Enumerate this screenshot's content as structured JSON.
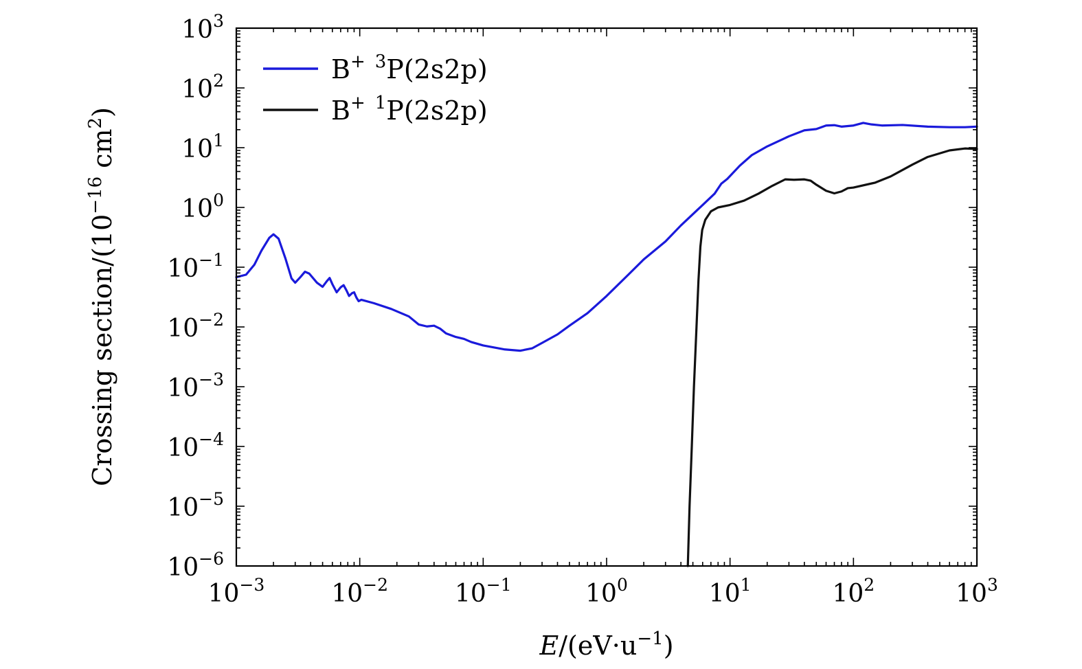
{
  "chart_data": {
    "type": "line",
    "xscale": "log",
    "yscale": "log",
    "xlim": [
      0.001,
      1000
    ],
    "ylim": [
      1e-06,
      1000
    ],
    "xlabel": "E/(eV·u⁻¹)",
    "xlabel_parts": {
      "var": "E",
      "unit_pre": "/(eV·u",
      "unit_exp": "−1",
      "unit_post": ")"
    },
    "ylabel": "Crossing section/(10⁻¹⁶ cm²)",
    "ylabel_parts": {
      "pre": "Crossing section/(10",
      "exp1": "−16",
      "mid": " cm",
      "exp2": "2",
      "post": ")"
    },
    "x_ticks": [
      {
        "value": 0.001,
        "base": "10",
        "exp": "−3"
      },
      {
        "value": 0.01,
        "base": "10",
        "exp": "−2"
      },
      {
        "value": 0.1,
        "base": "10",
        "exp": "−1"
      },
      {
        "value": 1,
        "base": "10",
        "exp": "0"
      },
      {
        "value": 10,
        "base": "10",
        "exp": "1"
      },
      {
        "value": 100,
        "base": "10",
        "exp": "2"
      },
      {
        "value": 1000,
        "base": "10",
        "exp": "3"
      }
    ],
    "y_ticks": [
      {
        "value": 1e-06,
        "base": "10",
        "exp": "−6"
      },
      {
        "value": 1e-05,
        "base": "10",
        "exp": "−5"
      },
      {
        "value": 0.0001,
        "base": "10",
        "exp": "−4"
      },
      {
        "value": 0.001,
        "base": "10",
        "exp": "−3"
      },
      {
        "value": 0.01,
        "base": "10",
        "exp": "−2"
      },
      {
        "value": 0.1,
        "base": "10",
        "exp": "−1"
      },
      {
        "value": 1,
        "base": "10",
        "exp": "0"
      },
      {
        "value": 10,
        "base": "10",
        "exp": "1"
      },
      {
        "value": 100,
        "base": "10",
        "exp": "2"
      },
      {
        "value": 1000,
        "base": "10",
        "exp": "3"
      }
    ],
    "grid": false,
    "legend_position": "top-left",
    "series": [
      {
        "name": "B+ 3P(2s2p)",
        "label_parts": {
          "base": "B",
          "charge": "+",
          "mult": "3",
          "rest": "P(2s2p)"
        },
        "color": "#1a1adb",
        "points": [
          [
            0.001,
            0.068
          ],
          [
            0.0012,
            0.075
          ],
          [
            0.0014,
            0.11
          ],
          [
            0.0016,
            0.19
          ],
          [
            0.00185,
            0.31
          ],
          [
            0.002,
            0.355
          ],
          [
            0.0022,
            0.3
          ],
          [
            0.0025,
            0.14
          ],
          [
            0.0028,
            0.065
          ],
          [
            0.003,
            0.055
          ],
          [
            0.0033,
            0.068
          ],
          [
            0.0036,
            0.084
          ],
          [
            0.0039,
            0.078
          ],
          [
            0.0045,
            0.055
          ],
          [
            0.005,
            0.047
          ],
          [
            0.0054,
            0.058
          ],
          [
            0.0057,
            0.066
          ],
          [
            0.006,
            0.052
          ],
          [
            0.0065,
            0.038
          ],
          [
            0.007,
            0.046
          ],
          [
            0.0074,
            0.05
          ],
          [
            0.0078,
            0.041
          ],
          [
            0.0082,
            0.033
          ],
          [
            0.0087,
            0.037
          ],
          [
            0.009,
            0.038
          ],
          [
            0.0094,
            0.031
          ],
          [
            0.0098,
            0.027
          ],
          [
            0.0103,
            0.0285
          ],
          [
            0.013,
            0.025
          ],
          [
            0.018,
            0.02
          ],
          [
            0.025,
            0.015
          ],
          [
            0.03,
            0.011
          ],
          [
            0.035,
            0.0102
          ],
          [
            0.04,
            0.0105
          ],
          [
            0.045,
            0.0093
          ],
          [
            0.05,
            0.0078
          ],
          [
            0.06,
            0.0068
          ],
          [
            0.07,
            0.0063
          ],
          [
            0.08,
            0.0056
          ],
          [
            0.1,
            0.0049
          ],
          [
            0.15,
            0.0042
          ],
          [
            0.2,
            0.004
          ],
          [
            0.25,
            0.0044
          ],
          [
            0.3,
            0.0054
          ],
          [
            0.4,
            0.0075
          ],
          [
            0.5,
            0.0105
          ],
          [
            0.7,
            0.017
          ],
          [
            1.0,
            0.033
          ],
          [
            1.5,
            0.075
          ],
          [
            2.0,
            0.135
          ],
          [
            3.0,
            0.27
          ],
          [
            4.0,
            0.5
          ],
          [
            6.0,
            1.1
          ],
          [
            7.5,
            1.7
          ],
          [
            8.5,
            2.5
          ],
          [
            9.5,
            3.0
          ],
          [
            12,
            5.0
          ],
          [
            15,
            7.5
          ],
          [
            20,
            10.5
          ],
          [
            30,
            15.5
          ],
          [
            40,
            19.5
          ],
          [
            50,
            20.5
          ],
          [
            60,
            23.5
          ],
          [
            70,
            23.8
          ],
          [
            80,
            22.5
          ],
          [
            100,
            23.5
          ],
          [
            120,
            26.0
          ],
          [
            140,
            24.5
          ],
          [
            170,
            23.5
          ],
          [
            250,
            24.0
          ],
          [
            400,
            22.5
          ],
          [
            600,
            22.0
          ],
          [
            800,
            22.0
          ],
          [
            1000,
            22.5
          ]
        ]
      },
      {
        "name": "B+ 1P(2s2p)",
        "label_parts": {
          "base": "B",
          "charge": "+",
          "mult": "1",
          "rest": "P(2s2p)"
        },
        "color": "#111111",
        "points": [
          [
            4.55,
            1e-06
          ],
          [
            4.7,
            1e-05
          ],
          [
            4.9,
            0.0001
          ],
          [
            5.1,
            0.001
          ],
          [
            5.35,
            0.01
          ],
          [
            5.55,
            0.06
          ],
          [
            5.75,
            0.22
          ],
          [
            5.95,
            0.42
          ],
          [
            6.3,
            0.62
          ],
          [
            7.0,
            0.86
          ],
          [
            8.0,
            1.0
          ],
          [
            10,
            1.1
          ],
          [
            13,
            1.3
          ],
          [
            17,
            1.7
          ],
          [
            22,
            2.3
          ],
          [
            28,
            2.95
          ],
          [
            33,
            2.9
          ],
          [
            40,
            2.95
          ],
          [
            45,
            2.8
          ],
          [
            50,
            2.4
          ],
          [
            60,
            1.9
          ],
          [
            70,
            1.72
          ],
          [
            80,
            1.85
          ],
          [
            90,
            2.1
          ],
          [
            100,
            2.15
          ],
          [
            150,
            2.6
          ],
          [
            200,
            3.3
          ],
          [
            300,
            5.2
          ],
          [
            400,
            7.0
          ],
          [
            600,
            9.0
          ],
          [
            800,
            9.7
          ],
          [
            1000,
            9.5
          ]
        ]
      }
    ]
  }
}
